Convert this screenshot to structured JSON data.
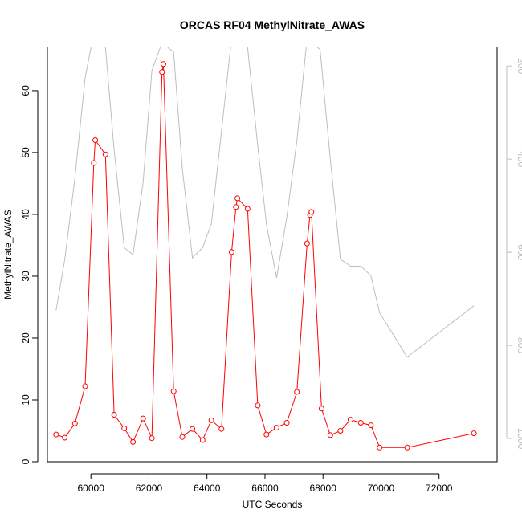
{
  "chart_data": {
    "type": "line",
    "title": "ORCAS RF04 MethylNitrate_AWAS",
    "xlabel": "UTC Seconds",
    "ylabel": "MethylNitrate_AWAS",
    "xlim": [
      58500,
      74000
    ],
    "ylim": [
      0,
      67
    ],
    "y2lim": [
      1050,
      160
    ],
    "x_ticks": [
      60000,
      62000,
      64000,
      66000,
      68000,
      70000,
      72000
    ],
    "y_ticks": [
      0,
      10,
      20,
      30,
      40,
      50,
      60
    ],
    "y2_ticks": [
      200,
      400,
      600,
      800,
      1000
    ],
    "grid": false,
    "legend": "none",
    "series": [
      {
        "axis": "left",
        "color": "#ff0000",
        "style": "line+open-circles",
        "x": [
          58800,
          59100,
          59450,
          59800,
          60100,
          60150,
          60500,
          60800,
          61150,
          61450,
          61800,
          62100,
          62450,
          62500,
          62850,
          63150,
          63500,
          63850,
          64150,
          64500,
          64850,
          65000,
          65050,
          65400,
          65750,
          66050,
          66400,
          66750,
          67100,
          67450,
          67550,
          67600,
          67950,
          68250,
          68600,
          68950,
          69300,
          69650,
          69950,
          70900,
          73200
        ],
        "y": [
          4.4,
          3.9,
          6.2,
          12.2,
          48.3,
          52.0,
          49.7,
          7.6,
          5.4,
          3.2,
          7.0,
          3.8,
          63.0,
          64.3,
          11.4,
          4.0,
          5.3,
          3.5,
          6.7,
          5.3,
          33.9,
          41.2,
          42.6,
          40.9,
          9.1,
          4.4,
          5.5,
          6.3,
          11.3,
          35.3,
          39.9,
          40.4,
          8.6,
          4.3,
          5.0,
          6.8,
          6.3,
          5.9,
          2.3,
          2.3,
          4.6
        ]
      },
      {
        "axis": "right",
        "color": "#bebebe",
        "style": "line",
        "x": [
          58800,
          59100,
          59450,
          59800,
          60100,
          60500,
          60800,
          61150,
          61450,
          61800,
          62100,
          62450,
          62850,
          63150,
          63500,
          63850,
          64150,
          64500,
          64850,
          65150,
          65400,
          65750,
          66050,
          66400,
          66750,
          67100,
          67450,
          67900,
          68250,
          68600,
          68950,
          69300,
          69650,
          69950,
          70900,
          73200
        ],
        "y": [
          725,
          615,
          440,
          225,
          130,
          160,
          380,
          590,
          605,
          450,
          210,
          150,
          170,
          420,
          612,
          590,
          540,
          340,
          140,
          130,
          160,
          370,
          540,
          655,
          525,
          360,
          140,
          165,
          400,
          615,
          630,
          630,
          650,
          730,
          825,
          715
        ]
      }
    ]
  }
}
